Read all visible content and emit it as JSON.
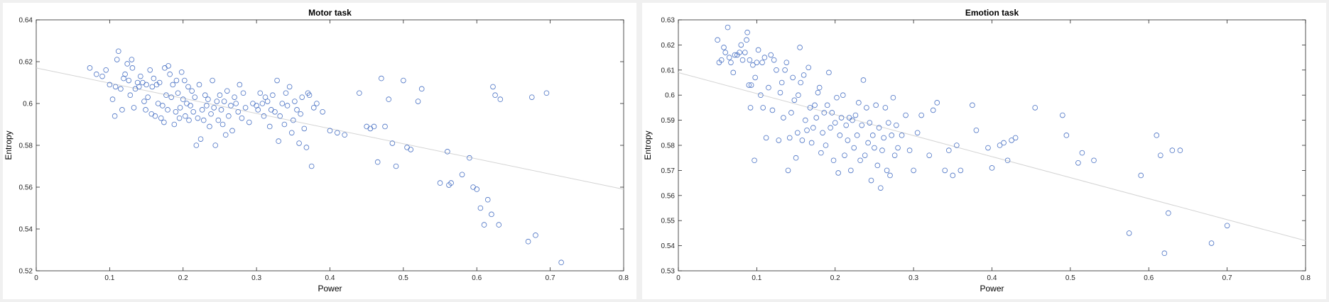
{
  "colors": {
    "background": "#f0f0f0",
    "plot_bg": "#ffffff",
    "marker": "#4a72c4",
    "fit_line": "#d4d4d4",
    "axis": "#262626"
  },
  "chart_data": [
    {
      "type": "scatter",
      "title": "Motor task",
      "xlabel": "Power",
      "ylabel": "Entropy",
      "xlim": [
        0,
        0.8
      ],
      "ylim": [
        0.52,
        0.64
      ],
      "xticks": [
        0,
        0.1,
        0.2,
        0.3,
        0.4,
        0.5,
        0.6,
        0.7,
        0.8
      ],
      "xtick_labels": [
        "0",
        "0.1",
        "0.2",
        "0.3",
        "0.4",
        "0.5",
        "0.6",
        "0.7",
        "0.8"
      ],
      "yticks": [
        0.52,
        0.54,
        0.56,
        0.58,
        0.6,
        0.62,
        0.64
      ],
      "ytick_labels": [
        "0.52",
        "0.54",
        "0.56",
        "0.58",
        "0.6",
        "0.62",
        "0.64"
      ],
      "grid": false,
      "fit_line": {
        "x": [
          0,
          0.8
        ],
        "y": [
          0.617,
          0.559
        ]
      },
      "points": [
        [
          0.073,
          0.617
        ],
        [
          0.082,
          0.614
        ],
        [
          0.09,
          0.613
        ],
        [
          0.095,
          0.616
        ],
        [
          0.1,
          0.609
        ],
        [
          0.104,
          0.602
        ],
        [
          0.107,
          0.594
        ],
        [
          0.108,
          0.608
        ],
        [
          0.11,
          0.621
        ],
        [
          0.112,
          0.625
        ],
        [
          0.115,
          0.607
        ],
        [
          0.117,
          0.597
        ],
        [
          0.119,
          0.612
        ],
        [
          0.121,
          0.614
        ],
        [
          0.124,
          0.619
        ],
        [
          0.126,
          0.611
        ],
        [
          0.128,
          0.604
        ],
        [
          0.13,
          0.621
        ],
        [
          0.131,
          0.617
        ],
        [
          0.133,
          0.598
        ],
        [
          0.135,
          0.607
        ],
        [
          0.138,
          0.61
        ],
        [
          0.14,
          0.608
        ],
        [
          0.142,
          0.613
        ],
        [
          0.145,
          0.61
        ],
        [
          0.147,
          0.601
        ],
        [
          0.149,
          0.597
        ],
        [
          0.15,
          0.609
        ],
        [
          0.152,
          0.603
        ],
        [
          0.155,
          0.616
        ],
        [
          0.157,
          0.595
        ],
        [
          0.158,
          0.608
        ],
        [
          0.16,
          0.612
        ],
        [
          0.162,
          0.594
        ],
        [
          0.164,
          0.609
        ],
        [
          0.166,
          0.6
        ],
        [
          0.168,
          0.61
        ],
        [
          0.17,
          0.593
        ],
        [
          0.172,
          0.599
        ],
        [
          0.174,
          0.591
        ],
        [
          0.175,
          0.617
        ],
        [
          0.177,
          0.604
        ],
        [
          0.179,
          0.597
        ],
        [
          0.18,
          0.618
        ],
        [
          0.182,
          0.614
        ],
        [
          0.184,
          0.603
        ],
        [
          0.186,
          0.609
        ],
        [
          0.188,
          0.59
        ],
        [
          0.19,
          0.596
        ],
        [
          0.191,
          0.611
        ],
        [
          0.193,
          0.605
        ],
        [
          0.195,
          0.593
        ],
        [
          0.196,
          0.598
        ],
        [
          0.198,
          0.615
        ],
        [
          0.2,
          0.602
        ],
        [
          0.202,
          0.611
        ],
        [
          0.203,
          0.594
        ],
        [
          0.205,
          0.6
        ],
        [
          0.207,
          0.608
        ],
        [
          0.208,
          0.592
        ],
        [
          0.21,
          0.599
        ],
        [
          0.212,
          0.606
        ],
        [
          0.214,
          0.596
        ],
        [
          0.216,
          0.603
        ],
        [
          0.218,
          0.58
        ],
        [
          0.22,
          0.593
        ],
        [
          0.222,
          0.609
        ],
        [
          0.224,
          0.583
        ],
        [
          0.226,
          0.597
        ],
        [
          0.228,
          0.592
        ],
        [
          0.23,
          0.604
        ],
        [
          0.232,
          0.599
        ],
        [
          0.234,
          0.602
        ],
        [
          0.236,
          0.589
        ],
        [
          0.238,
          0.595
        ],
        [
          0.24,
          0.611
        ],
        [
          0.242,
          0.598
        ],
        [
          0.244,
          0.58
        ],
        [
          0.246,
          0.601
        ],
        [
          0.248,
          0.592
        ],
        [
          0.25,
          0.604
        ],
        [
          0.252,
          0.597
        ],
        [
          0.254,
          0.59
        ],
        [
          0.256,
          0.601
        ],
        [
          0.258,
          0.585
        ],
        [
          0.26,
          0.606
        ],
        [
          0.262,
          0.594
        ],
        [
          0.265,
          0.599
        ],
        [
          0.267,
          0.587
        ],
        [
          0.27,
          0.603
        ],
        [
          0.272,
          0.6
        ],
        [
          0.275,
          0.596
        ],
        [
          0.277,
          0.609
        ],
        [
          0.28,
          0.593
        ],
        [
          0.282,
          0.605
        ],
        [
          0.285,
          0.598
        ],
        [
          0.29,
          0.591
        ],
        [
          0.295,
          0.6
        ],
        [
          0.3,
          0.599
        ],
        [
          0.302,
          0.597
        ],
        [
          0.305,
          0.605
        ],
        [
          0.308,
          0.6
        ],
        [
          0.31,
          0.594
        ],
        [
          0.312,
          0.603
        ],
        [
          0.315,
          0.601
        ],
        [
          0.318,
          0.589
        ],
        [
          0.32,
          0.597
        ],
        [
          0.322,
          0.604
        ],
        [
          0.325,
          0.596
        ],
        [
          0.328,
          0.611
        ],
        [
          0.33,
          0.582
        ],
        [
          0.332,
          0.594
        ],
        [
          0.335,
          0.6
        ],
        [
          0.338,
          0.59
        ],
        [
          0.34,
          0.605
        ],
        [
          0.342,
          0.599
        ],
        [
          0.345,
          0.608
        ],
        [
          0.348,
          0.586
        ],
        [
          0.35,
          0.592
        ],
        [
          0.352,
          0.601
        ],
        [
          0.355,
          0.597
        ],
        [
          0.358,
          0.581
        ],
        [
          0.36,
          0.595
        ],
        [
          0.362,
          0.603
        ],
        [
          0.365,
          0.588
        ],
        [
          0.368,
          0.579
        ],
        [
          0.37,
          0.605
        ],
        [
          0.372,
          0.604
        ],
        [
          0.375,
          0.57
        ],
        [
          0.378,
          0.598
        ],
        [
          0.382,
          0.6
        ],
        [
          0.39,
          0.596
        ],
        [
          0.4,
          0.587
        ],
        [
          0.41,
          0.586
        ],
        [
          0.42,
          0.585
        ],
        [
          0.44,
          0.605
        ],
        [
          0.45,
          0.589
        ],
        [
          0.455,
          0.588
        ],
        [
          0.46,
          0.589
        ],
        [
          0.465,
          0.572
        ],
        [
          0.47,
          0.612
        ],
        [
          0.475,
          0.589
        ],
        [
          0.48,
          0.602
        ],
        [
          0.485,
          0.581
        ],
        [
          0.49,
          0.57
        ],
        [
          0.5,
          0.611
        ],
        [
          0.505,
          0.579
        ],
        [
          0.51,
          0.578
        ],
        [
          0.52,
          0.601
        ],
        [
          0.525,
          0.607
        ],
        [
          0.55,
          0.562
        ],
        [
          0.56,
          0.577
        ],
        [
          0.562,
          0.561
        ],
        [
          0.565,
          0.562
        ],
        [
          0.58,
          0.566
        ],
        [
          0.59,
          0.574
        ],
        [
          0.595,
          0.56
        ],
        [
          0.6,
          0.559
        ],
        [
          0.605,
          0.55
        ],
        [
          0.61,
          0.542
        ],
        [
          0.615,
          0.554
        ],
        [
          0.62,
          0.547
        ],
        [
          0.622,
          0.608
        ],
        [
          0.625,
          0.604
        ],
        [
          0.63,
          0.542
        ],
        [
          0.632,
          0.602
        ],
        [
          0.67,
          0.534
        ],
        [
          0.675,
          0.603
        ],
        [
          0.68,
          0.537
        ],
        [
          0.695,
          0.605
        ],
        [
          0.715,
          0.524
        ]
      ]
    },
    {
      "type": "scatter",
      "title": "Emotion task",
      "xlabel": "Power",
      "ylabel": "Entropy",
      "xlim": [
        0,
        0.8
      ],
      "ylim": [
        0.53,
        0.63
      ],
      "xticks": [
        0,
        0.1,
        0.2,
        0.3,
        0.4,
        0.5,
        0.6,
        0.7,
        0.8
      ],
      "xtick_labels": [
        "0",
        "0.1",
        "0.2",
        "0.3",
        "0.4",
        "0.5",
        "0.6",
        "0.7",
        "0.8"
      ],
      "yticks": [
        0.53,
        0.54,
        0.55,
        0.56,
        0.57,
        0.58,
        0.59,
        0.6,
        0.61,
        0.62,
        0.63
      ],
      "ytick_labels": [
        "0.53",
        "0.54",
        "0.55",
        "0.56",
        "0.57",
        "0.58",
        "0.59",
        "0.6",
        "0.61",
        "0.62",
        "0.63"
      ],
      "grid": false,
      "fit_line": {
        "x": [
          0,
          0.8
        ],
        "y": [
          0.609,
          0.542
        ]
      },
      "points": [
        [
          0.05,
          0.622
        ],
        [
          0.052,
          0.613
        ],
        [
          0.055,
          0.614
        ],
        [
          0.058,
          0.619
        ],
        [
          0.06,
          0.617
        ],
        [
          0.063,
          0.627
        ],
        [
          0.065,
          0.615
        ],
        [
          0.067,
          0.613
        ],
        [
          0.07,
          0.609
        ],
        [
          0.072,
          0.616
        ],
        [
          0.075,
          0.616
        ],
        [
          0.078,
          0.617
        ],
        [
          0.08,
          0.62
        ],
        [
          0.082,
          0.614
        ],
        [
          0.085,
          0.617
        ],
        [
          0.087,
          0.622
        ],
        [
          0.088,
          0.625
        ],
        [
          0.09,
          0.604
        ],
        [
          0.091,
          0.614
        ],
        [
          0.092,
          0.595
        ],
        [
          0.093,
          0.604
        ],
        [
          0.095,
          0.612
        ],
        [
          0.097,
          0.574
        ],
        [
          0.098,
          0.607
        ],
        [
          0.1,
          0.613
        ],
        [
          0.102,
          0.618
        ],
        [
          0.105,
          0.6
        ],
        [
          0.107,
          0.613
        ],
        [
          0.108,
          0.595
        ],
        [
          0.11,
          0.615
        ],
        [
          0.112,
          0.583
        ],
        [
          0.115,
          0.603
        ],
        [
          0.118,
          0.616
        ],
        [
          0.12,
          0.594
        ],
        [
          0.122,
          0.614
        ],
        [
          0.125,
          0.61
        ],
        [
          0.128,
          0.582
        ],
        [
          0.13,
          0.601
        ],
        [
          0.132,
          0.605
        ],
        [
          0.134,
          0.591
        ],
        [
          0.136,
          0.61
        ],
        [
          0.138,
          0.613
        ],
        [
          0.14,
          0.57
        ],
        [
          0.142,
          0.583
        ],
        [
          0.144,
          0.593
        ],
        [
          0.146,
          0.607
        ],
        [
          0.148,
          0.598
        ],
        [
          0.15,
          0.575
        ],
        [
          0.152,
          0.585
        ],
        [
          0.153,
          0.6
        ],
        [
          0.155,
          0.619
        ],
        [
          0.156,
          0.605
        ],
        [
          0.158,
          0.582
        ],
        [
          0.16,
          0.608
        ],
        [
          0.162,
          0.59
        ],
        [
          0.164,
          0.586
        ],
        [
          0.166,
          0.611
        ],
        [
          0.168,
          0.595
        ],
        [
          0.17,
          0.581
        ],
        [
          0.172,
          0.587
        ],
        [
          0.174,
          0.596
        ],
        [
          0.176,
          0.591
        ],
        [
          0.178,
          0.601
        ],
        [
          0.18,
          0.603
        ],
        [
          0.182,
          0.577
        ],
        [
          0.184,
          0.585
        ],
        [
          0.186,
          0.593
        ],
        [
          0.188,
          0.58
        ],
        [
          0.19,
          0.596
        ],
        [
          0.192,
          0.609
        ],
        [
          0.194,
          0.587
        ],
        [
          0.196,
          0.593
        ],
        [
          0.198,
          0.574
        ],
        [
          0.2,
          0.589
        ],
        [
          0.202,
          0.599
        ],
        [
          0.204,
          0.569
        ],
        [
          0.206,
          0.584
        ],
        [
          0.208,
          0.591
        ],
        [
          0.21,
          0.6
        ],
        [
          0.212,
          0.576
        ],
        [
          0.214,
          0.588
        ],
        [
          0.216,
          0.582
        ],
        [
          0.218,
          0.591
        ],
        [
          0.22,
          0.57
        ],
        [
          0.222,
          0.59
        ],
        [
          0.224,
          0.579
        ],
        [
          0.226,
          0.592
        ],
        [
          0.228,
          0.584
        ],
        [
          0.23,
          0.597
        ],
        [
          0.232,
          0.574
        ],
        [
          0.234,
          0.588
        ],
        [
          0.236,
          0.606
        ],
        [
          0.238,
          0.576
        ],
        [
          0.24,
          0.595
        ],
        [
          0.242,
          0.581
        ],
        [
          0.244,
          0.589
        ],
        [
          0.246,
          0.566
        ],
        [
          0.248,
          0.584
        ],
        [
          0.25,
          0.579
        ],
        [
          0.252,
          0.596
        ],
        [
          0.254,
          0.572
        ],
        [
          0.256,
          0.587
        ],
        [
          0.258,
          0.563
        ],
        [
          0.26,
          0.578
        ],
        [
          0.262,
          0.583
        ],
        [
          0.264,
          0.595
        ],
        [
          0.266,
          0.57
        ],
        [
          0.268,
          0.589
        ],
        [
          0.27,
          0.568
        ],
        [
          0.272,
          0.584
        ],
        [
          0.274,
          0.599
        ],
        [
          0.276,
          0.576
        ],
        [
          0.278,
          0.588
        ],
        [
          0.28,
          0.579
        ],
        [
          0.285,
          0.584
        ],
        [
          0.29,
          0.592
        ],
        [
          0.295,
          0.578
        ],
        [
          0.3,
          0.57
        ],
        [
          0.305,
          0.585
        ],
        [
          0.31,
          0.592
        ],
        [
          0.32,
          0.576
        ],
        [
          0.325,
          0.594
        ],
        [
          0.33,
          0.597
        ],
        [
          0.34,
          0.57
        ],
        [
          0.345,
          0.578
        ],
        [
          0.35,
          0.568
        ],
        [
          0.355,
          0.58
        ],
        [
          0.36,
          0.57
        ],
        [
          0.375,
          0.596
        ],
        [
          0.38,
          0.586
        ],
        [
          0.395,
          0.579
        ],
        [
          0.4,
          0.571
        ],
        [
          0.41,
          0.58
        ],
        [
          0.415,
          0.581
        ],
        [
          0.42,
          0.574
        ],
        [
          0.425,
          0.582
        ],
        [
          0.43,
          0.583
        ],
        [
          0.455,
          0.595
        ],
        [
          0.49,
          0.592
        ],
        [
          0.495,
          0.584
        ],
        [
          0.51,
          0.573
        ],
        [
          0.515,
          0.577
        ],
        [
          0.53,
          0.574
        ],
        [
          0.575,
          0.545
        ],
        [
          0.59,
          0.568
        ],
        [
          0.61,
          0.584
        ],
        [
          0.615,
          0.576
        ],
        [
          0.62,
          0.537
        ],
        [
          0.625,
          0.553
        ],
        [
          0.63,
          0.578
        ],
        [
          0.64,
          0.578
        ],
        [
          0.68,
          0.541
        ],
        [
          0.7,
          0.548
        ]
      ]
    }
  ]
}
